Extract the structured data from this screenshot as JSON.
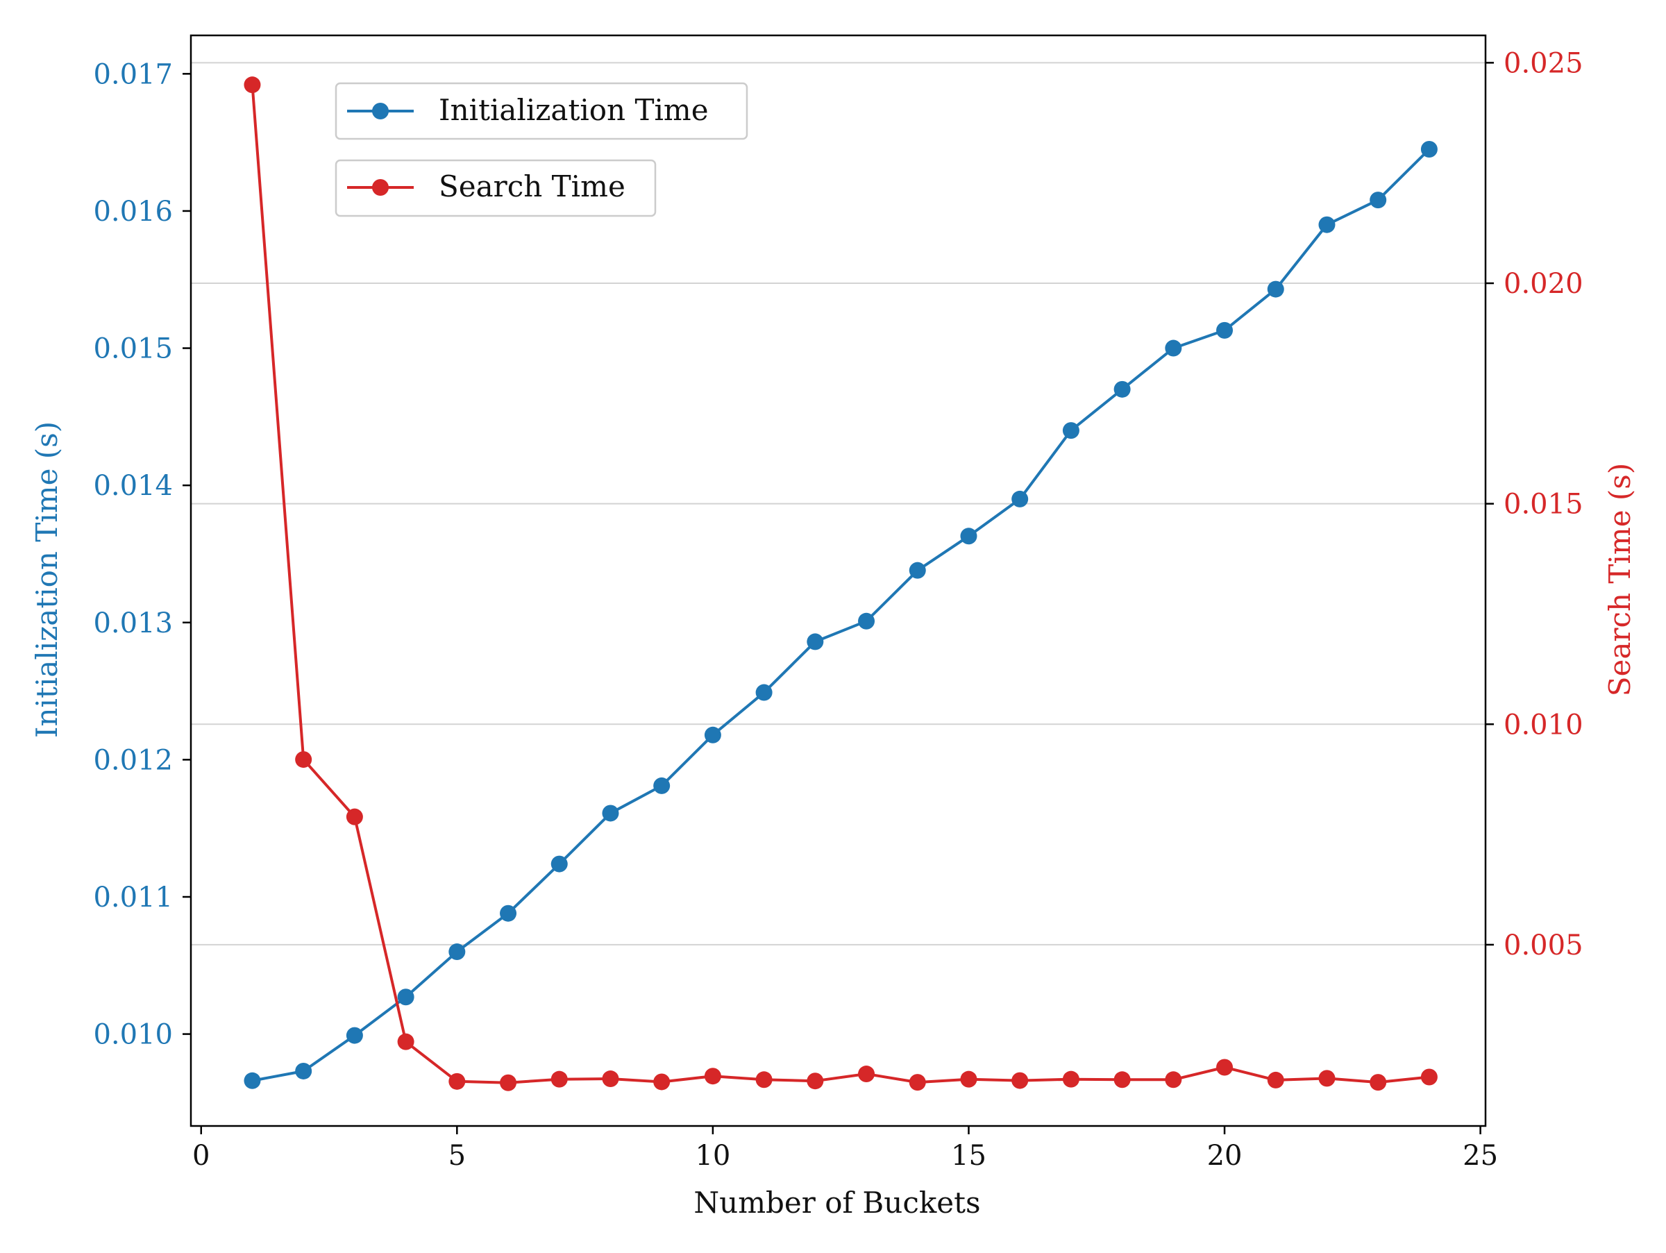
{
  "chart_data": {
    "type": "line",
    "xlabel": "Number of Buckets",
    "ylabel_left": "Initialization Time (s)",
    "ylabel_right": "Search Time (s)",
    "xlim": [
      -0.2,
      25.1
    ],
    "ylim_left": [
      0.00933,
      0.01728
    ],
    "ylim_right": [
      0.00089,
      0.02562
    ],
    "x_ticks": [
      0,
      5,
      10,
      15,
      20,
      25
    ],
    "y_ticks_left": [
      0.01,
      0.011,
      0.012,
      0.013,
      0.014,
      0.015,
      0.016,
      0.017
    ],
    "y_ticks_right": [
      0.005,
      0.01,
      0.015,
      0.02,
      0.025
    ],
    "grid": "horizontal lines at right-axis ticks",
    "legend_placement": "top-left",
    "colors": {
      "init": "#1f77b4",
      "search": "#d62728",
      "grid": "#d3d3d3",
      "axis": "#000000"
    },
    "x": [
      1,
      2,
      3,
      4,
      5,
      6,
      7,
      8,
      9,
      10,
      11,
      12,
      13,
      14,
      15,
      16,
      17,
      18,
      19,
      20,
      21,
      22,
      23,
      24
    ],
    "series": [
      {
        "name": "Initialization Time",
        "axis": "left",
        "values": [
          0.00966,
          0.00973,
          0.00999,
          0.01027,
          0.0106,
          0.01088,
          0.01124,
          0.01161,
          0.01181,
          0.01218,
          0.01249,
          0.01286,
          0.01301,
          0.01338,
          0.01363,
          0.0139,
          0.0144,
          0.0147,
          0.015,
          0.01513,
          0.01543,
          0.0159,
          0.01608,
          0.01645
        ]
      },
      {
        "name": "Search Time",
        "axis": "right",
        "values": [
          0.0245,
          0.0092,
          0.0079,
          0.0028,
          0.0019,
          0.00187,
          0.00195,
          0.00196,
          0.00189,
          0.00202,
          0.00194,
          0.00191,
          0.00207,
          0.00188,
          0.00195,
          0.00192,
          0.00195,
          0.00194,
          0.00194,
          0.00222,
          0.00193,
          0.00197,
          0.00188,
          0.002
        ]
      }
    ]
  }
}
